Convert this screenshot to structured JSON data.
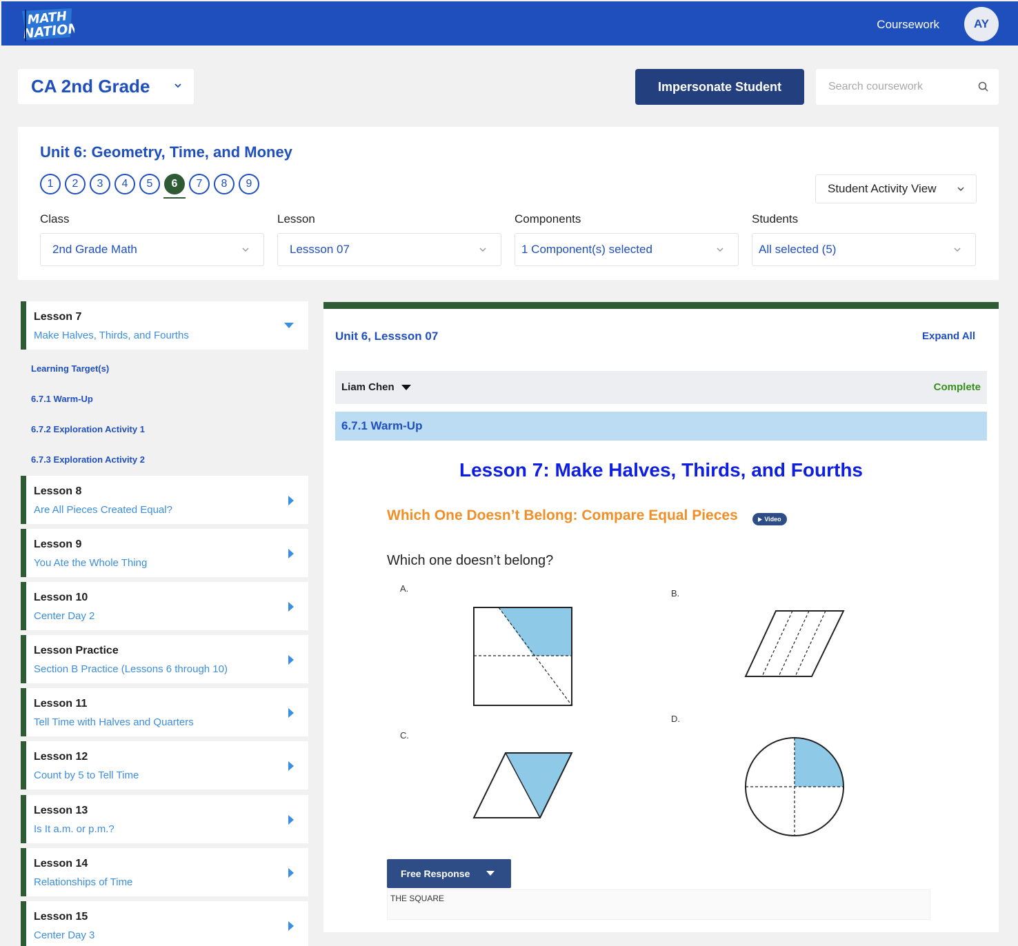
{
  "header": {
    "logo_text": "MATH NATION",
    "nav_link": "Coursework",
    "avatar_initials": "AY"
  },
  "toolbar": {
    "grade": "CA 2nd Grade",
    "impersonate_label": "Impersonate Student",
    "search_placeholder": "Search coursework"
  },
  "filters": {
    "unit_title": "Unit 6: Geometry, Time, and Money",
    "unit_numbers": [
      "1",
      "2",
      "3",
      "4",
      "5",
      "6",
      "7",
      "8",
      "9"
    ],
    "active_unit": "6",
    "view_select": "Student Activity View",
    "class_label": "Class",
    "class_value": "2nd Grade Math",
    "lesson_label": "Lesson",
    "lesson_value": "Lessson 07",
    "components_label": "Components",
    "components_value": "1 Component(s) selected",
    "students_label": "Students",
    "students_value": "All selected (5)"
  },
  "lessons": [
    {
      "title": "Lesson 7",
      "subtitle": "Make Halves, Thirds, and Fourths",
      "expanded": true
    },
    {
      "title": "Lesson 8",
      "subtitle": "Are All Pieces Created Equal?"
    },
    {
      "title": "Lesson 9",
      "subtitle": "You Ate the Whole Thing"
    },
    {
      "title": "Lesson 10",
      "subtitle": "Center Day 2"
    },
    {
      "title": "Lesson Practice",
      "subtitle": "Section B Practice (Lessons 6 through 10)"
    },
    {
      "title": "Lesson 11",
      "subtitle": "Tell Time with Halves and Quarters"
    },
    {
      "title": "Lesson 12",
      "subtitle": "Count by 5 to Tell Time"
    },
    {
      "title": "Lesson 13",
      "subtitle": "Is It a.m. or p.m.?"
    },
    {
      "title": "Lesson 14",
      "subtitle": "Relationships of Time"
    },
    {
      "title": "Lesson 15",
      "subtitle": "Center Day 3"
    }
  ],
  "lesson7_items": [
    "Learning Target(s)",
    "6.7.1 Warm-Up",
    "6.7.2 Exploration Activity 1",
    "6.7.3 Exploration Activity 2"
  ],
  "content": {
    "title": "Unit 6, Lessson 07",
    "expand_all": "Expand All",
    "student_name": "Liam Chen",
    "status": "Complete",
    "section": "6.7.1 Warm-Up",
    "lesson_heading": "Lesson 7: Make Halves, Thirds, and Fourths",
    "activity_heading": "Which One Doesn’t Belong: Compare Equal Pieces",
    "video_badge": "Video",
    "question": "Which one doesn’t belong?",
    "options": [
      "A.",
      "B.",
      "C.",
      "D."
    ],
    "response_type": "Free Response",
    "answer": "THE SQUARE"
  },
  "colors": {
    "brand_blue": "#1f4fbd",
    "dark_navy": "#233f7d",
    "green": "#2e5a34",
    "fill_blue": "#8ecae8",
    "orange": "#f08f28",
    "complete_green": "#36901c"
  }
}
